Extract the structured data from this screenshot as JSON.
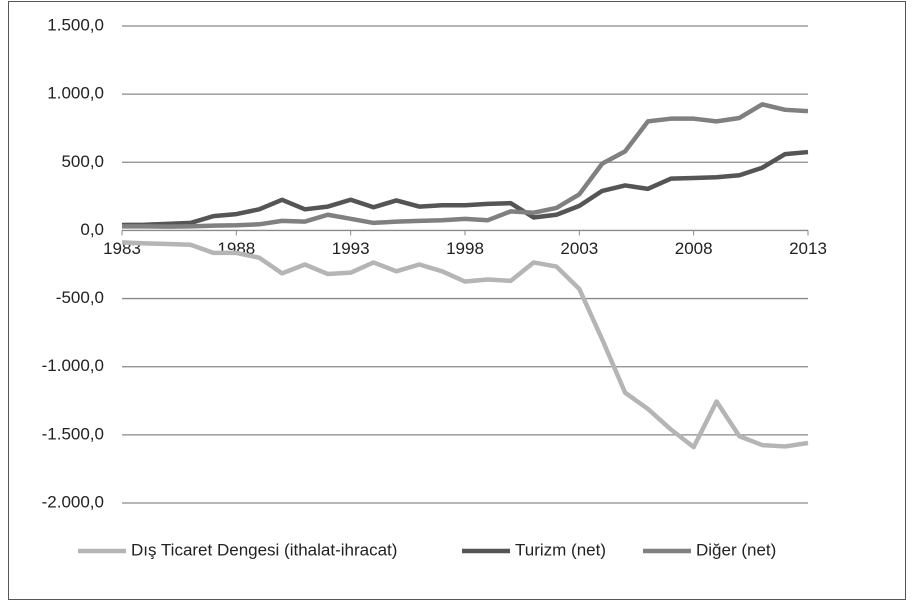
{
  "chart_data": {
    "type": "line",
    "x": [
      1983,
      1984,
      1985,
      1986,
      1987,
      1988,
      1989,
      1990,
      1991,
      1992,
      1993,
      1994,
      1995,
      1996,
      1997,
      1998,
      1999,
      2000,
      2001,
      2002,
      2003,
      2004,
      2005,
      2006,
      2007,
      2008,
      2009,
      2010,
      2011,
      2012,
      2013
    ],
    "series": [
      {
        "name": "Dış Ticaret Dengesi (ithalat-ihracat)",
        "color": "#b5b5b5",
        "values": [
          -88,
          -95,
          -100,
          -105,
          -165,
          -165,
          -200,
          -315,
          -250,
          -320,
          -310,
          -235,
          -300,
          -250,
          -300,
          -375,
          -360,
          -370,
          -235,
          -265,
          -430,
          -800,
          -1190,
          -1310,
          -1460,
          -1590,
          -1255,
          -1510,
          -1575,
          -1585,
          -1560
        ]
      },
      {
        "name": "Turizm (net)",
        "color": "#555555",
        "values": [
          40,
          42,
          48,
          55,
          105,
          120,
          155,
          225,
          155,
          175,
          225,
          170,
          220,
          175,
          185,
          185,
          195,
          200,
          95,
          115,
          180,
          290,
          330,
          305,
          380,
          385,
          390,
          405,
          460,
          560,
          575
        ]
      },
      {
        "name": "Diğer (net)",
        "color": "#808080",
        "values": [
          30,
          30,
          28,
          30,
          35,
          38,
          45,
          70,
          65,
          115,
          85,
          55,
          65,
          70,
          75,
          85,
          75,
          140,
          130,
          165,
          265,
          490,
          580,
          800,
          820,
          820,
          800,
          825,
          925,
          885,
          875
        ]
      }
    ],
    "xlim": [
      1983,
      2013
    ],
    "xticks": [
      1983,
      1988,
      1993,
      1998,
      2003,
      2008,
      2013
    ],
    "ylim": [
      -2000,
      1500
    ],
    "yticks": [
      {
        "value": -2000,
        "label": "-2.000,0"
      },
      {
        "value": -1500,
        "label": "-1.500,0"
      },
      {
        "value": -1000,
        "label": "-1.000,0"
      },
      {
        "value": -500,
        "label": "-500,0"
      },
      {
        "value": 0,
        "label": "0,0"
      },
      {
        "value": 500,
        "label": "500,0"
      },
      {
        "value": 1000,
        "label": "1.000,0"
      },
      {
        "value": 1500,
        "label": "1.500,0"
      }
    ],
    "grid": true,
    "legend": "bottom"
  }
}
